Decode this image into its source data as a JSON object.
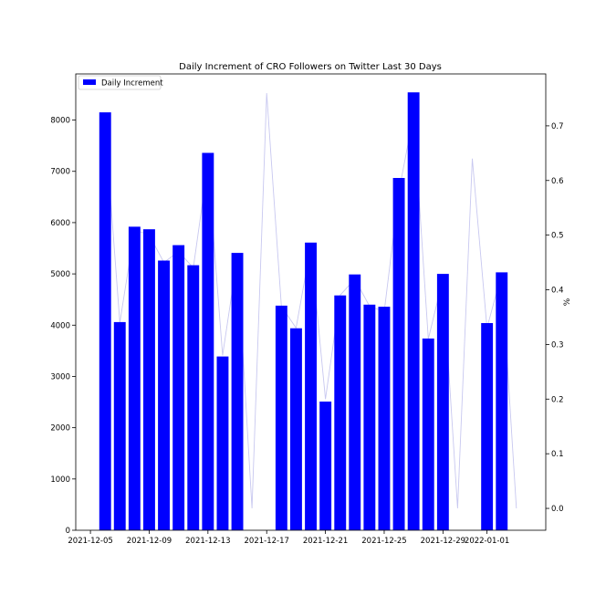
{
  "chart_data": {
    "type": "bar",
    "title": "Daily Increment of CRO Followers on Twitter Last 30 Days",
    "xlabel": "",
    "ylabel": "",
    "y2label": "%",
    "xlim": [
      "2021-12-04",
      "2022-01-05"
    ],
    "ylim": [
      0,
      8900
    ],
    "y2lim": [
      -0.04,
      0.795
    ],
    "x_ticks": [
      "2021-12-05",
      "2021-12-09",
      "2021-12-13",
      "2021-12-17",
      "2021-12-21",
      "2021-12-25",
      "2021-12-29",
      "2022-01-01"
    ],
    "y_ticks": [
      0,
      1000,
      2000,
      3000,
      4000,
      5000,
      6000,
      7000,
      8000
    ],
    "y2_ticks": [
      "0.0",
      "0.1",
      "0.2",
      "0.3",
      "0.4",
      "0.5",
      "0.6",
      "0.7"
    ],
    "legend": {
      "label": "Daily Increment",
      "position": "top-left"
    },
    "grid": false,
    "colors": {
      "bar": "#0000ff",
      "line": "#c8c8f0"
    },
    "series": [
      {
        "name": "Daily Increment",
        "type": "bar",
        "axis": "left",
        "x": [
          "2021-12-06",
          "2021-12-07",
          "2021-12-08",
          "2021-12-09",
          "2021-12-10",
          "2021-12-11",
          "2021-12-12",
          "2021-12-13",
          "2021-12-14",
          "2021-12-15",
          "2021-12-18",
          "2021-12-19",
          "2021-12-20",
          "2021-12-21",
          "2021-12-22",
          "2021-12-23",
          "2021-12-24",
          "2021-12-25",
          "2021-12-26",
          "2021-12-27",
          "2021-12-28",
          "2021-12-29",
          "2022-01-01",
          "2022-01-02"
        ],
        "values": [
          8150,
          4060,
          5920,
          5870,
          5260,
          5560,
          5170,
          7360,
          3390,
          5410,
          4380,
          3940,
          5610,
          2510,
          4580,
          4990,
          4400,
          4360,
          6870,
          8540,
          3740,
          5000,
          4040,
          5030
        ]
      },
      {
        "name": "%",
        "type": "line",
        "axis": "right",
        "x": [
          "2021-12-06",
          "2021-12-07",
          "2021-12-08",
          "2021-12-09",
          "2021-12-10",
          "2021-12-11",
          "2021-12-12",
          "2021-12-13",
          "2021-12-14",
          "2021-12-15",
          "2021-12-16",
          "2021-12-17",
          "2021-12-18",
          "2021-12-19",
          "2021-12-20",
          "2021-12-21",
          "2021-12-22",
          "2021-12-23",
          "2021-12-24",
          "2021-12-25",
          "2021-12-26",
          "2021-12-27",
          "2021-12-28",
          "2021-12-29",
          "2021-12-30",
          "2021-12-31",
          "2022-01-01",
          "2022-01-02",
          "2022-01-03"
        ],
        "values": [
          0.7,
          0.34,
          0.51,
          0.5,
          0.45,
          0.47,
          0.44,
          0.63,
          0.28,
          0.46,
          0.0,
          0.76,
          0.37,
          0.33,
          0.48,
          0.2,
          0.39,
          0.42,
          0.37,
          0.36,
          0.58,
          0.72,
          0.31,
          0.42,
          0.0,
          0.64,
          0.33,
          0.43,
          0.0
        ]
      }
    ]
  }
}
